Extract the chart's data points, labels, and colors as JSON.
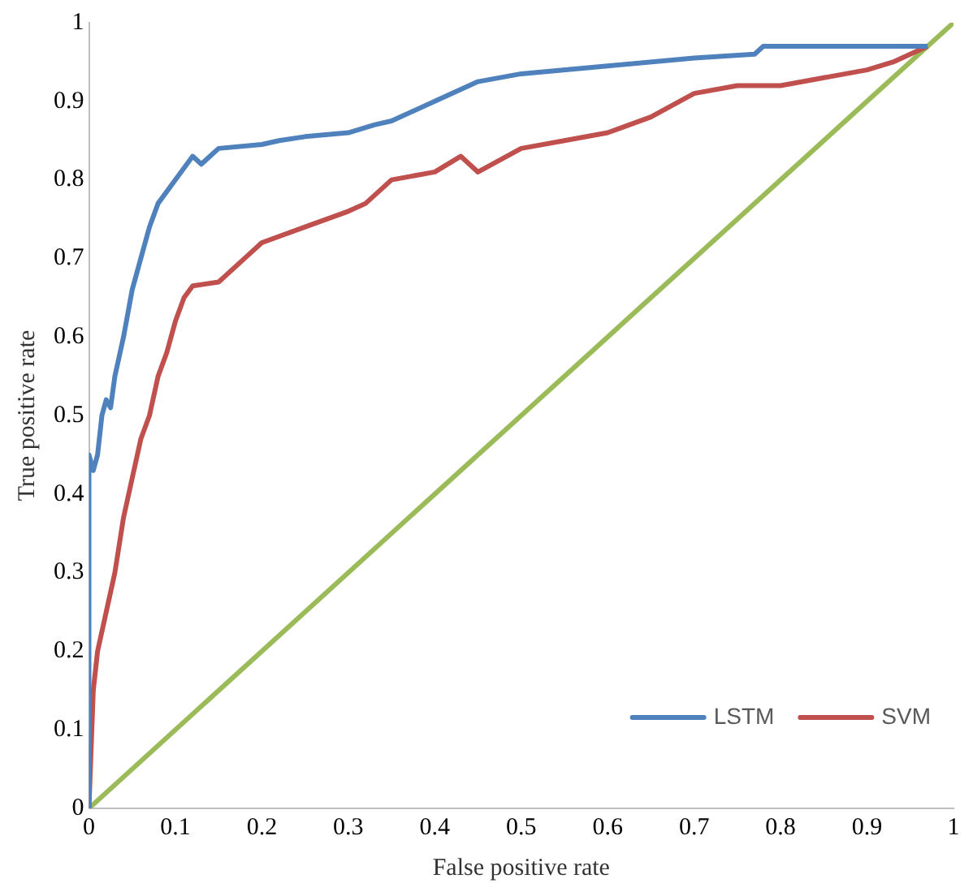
{
  "chart_data": {
    "type": "line",
    "xlabel": "False positive rate",
    "ylabel": "True positive rate",
    "xlim": [
      0,
      1
    ],
    "ylim": [
      0,
      1
    ],
    "xticks": [
      0,
      0.1,
      0.2,
      0.3,
      0.4,
      0.5,
      0.6,
      0.7,
      0.8,
      0.9,
      1
    ],
    "yticks": [
      0,
      0.1,
      0.2,
      0.3,
      0.4,
      0.5,
      0.6,
      0.7,
      0.8,
      0.9,
      1
    ],
    "legend": "bottom right",
    "marker": "none",
    "line_style": "solid",
    "grid": false,
    "series": [
      {
        "name": "LSTM",
        "color": "#4f81bd",
        "x": [
          0,
          0,
          0.005,
          0.01,
          0.015,
          0.02,
          0.025,
          0.03,
          0.04,
          0.05,
          0.06,
          0.07,
          0.08,
          0.1,
          0.12,
          0.13,
          0.15,
          0.2,
          0.22,
          0.25,
          0.3,
          0.33,
          0.35,
          0.4,
          0.45,
          0.5,
          0.6,
          0.7,
          0.77,
          0.78,
          0.97
        ],
        "values": [
          0,
          0.45,
          0.43,
          0.45,
          0.5,
          0.52,
          0.51,
          0.55,
          0.6,
          0.66,
          0.7,
          0.74,
          0.77,
          0.8,
          0.83,
          0.82,
          0.84,
          0.845,
          0.85,
          0.855,
          0.86,
          0.87,
          0.875,
          0.9,
          0.925,
          0.935,
          0.945,
          0.955,
          0.96,
          0.97,
          0.97
        ]
      },
      {
        "name": "SVM",
        "color": "#c0504d",
        "x": [
          0,
          0.005,
          0.01,
          0.02,
          0.03,
          0.04,
          0.05,
          0.06,
          0.07,
          0.08,
          0.09,
          0.1,
          0.11,
          0.12,
          0.15,
          0.18,
          0.2,
          0.25,
          0.3,
          0.32,
          0.35,
          0.4,
          0.43,
          0.45,
          0.5,
          0.55,
          0.6,
          0.65,
          0.7,
          0.75,
          0.8,
          0.85,
          0.9,
          0.93,
          0.95,
          0.97
        ],
        "values": [
          0,
          0.15,
          0.2,
          0.25,
          0.3,
          0.37,
          0.42,
          0.47,
          0.5,
          0.55,
          0.58,
          0.62,
          0.65,
          0.665,
          0.67,
          0.7,
          0.72,
          0.74,
          0.76,
          0.77,
          0.8,
          0.81,
          0.83,
          0.81,
          0.84,
          0.85,
          0.86,
          0.88,
          0.91,
          0.92,
          0.92,
          0.93,
          0.94,
          0.95,
          0.96,
          0.97
        ]
      },
      {
        "color": "#9bbb59",
        "x": [
          0,
          1
        ],
        "values": [
          0,
          1
        ]
      }
    ]
  }
}
